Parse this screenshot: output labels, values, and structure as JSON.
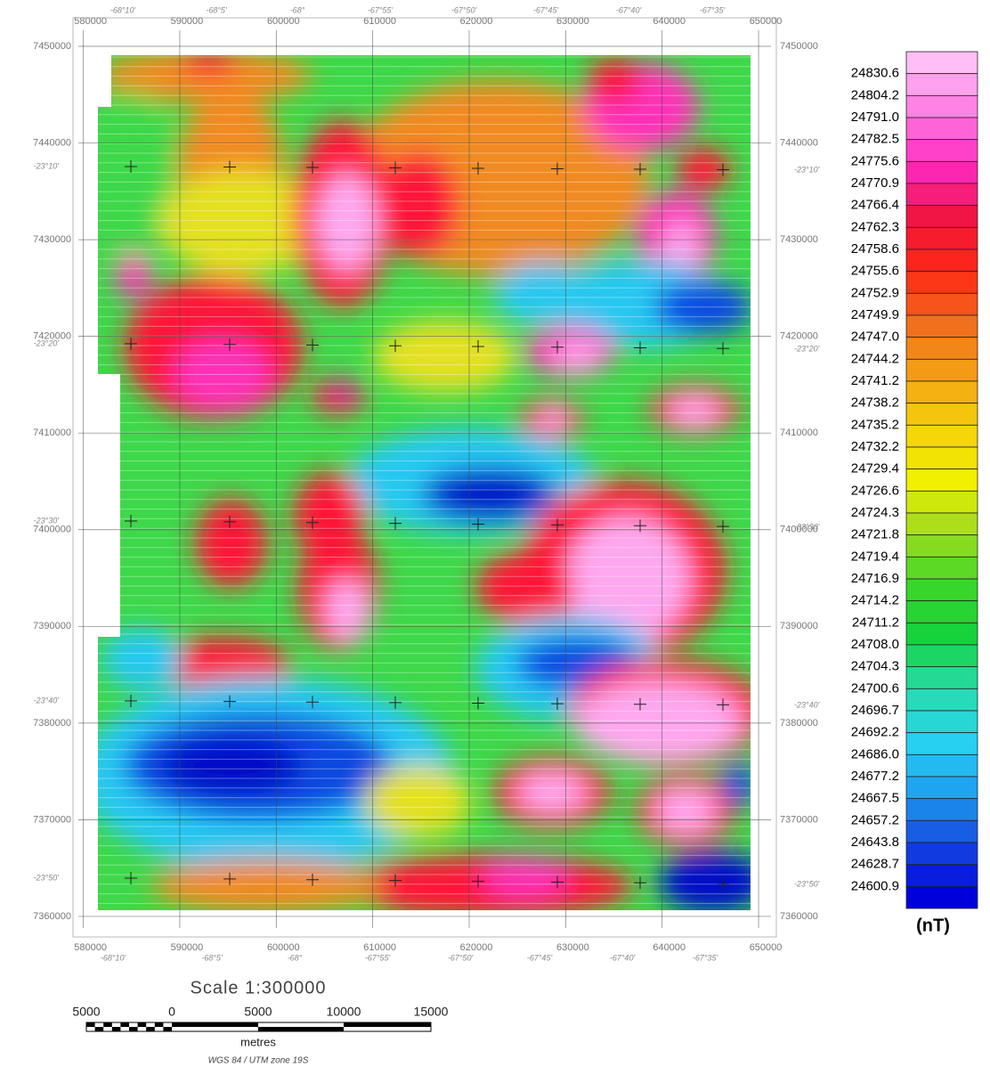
{
  "map": {
    "easting_labels": [
      "580000",
      "590000",
      "600000",
      "610000",
      "620000",
      "630000",
      "640000",
      "650000"
    ],
    "northing_labels": [
      "7450000",
      "7440000",
      "7430000",
      "7420000",
      "7410000",
      "7400000",
      "7390000",
      "7380000",
      "7370000",
      "7360000"
    ],
    "longitude_labels": [
      "-68°10'",
      "-68°5'",
      "-68°",
      "-67°55'",
      "-67°50'",
      "-67°45'",
      "-67°40'",
      "-67°35'"
    ],
    "latitude_labels": [
      "-23°10'",
      "-23°20'",
      "-23°30'",
      "-23°40'",
      "-23°50'"
    ]
  },
  "legend": {
    "levels": [
      "24830.6",
      "24804.2",
      "24791.0",
      "24782.5",
      "24775.6",
      "24770.9",
      "24766.4",
      "24762.3",
      "24758.6",
      "24755.6",
      "24752.9",
      "24749.9",
      "24747.0",
      "24744.2",
      "24741.2",
      "24738.2",
      "24735.2",
      "24732.2",
      "24729.4",
      "24726.6",
      "24724.3",
      "24721.8",
      "24719.4",
      "24716.9",
      "24714.2",
      "24711.2",
      "24708.0",
      "24704.3",
      "24700.6",
      "24696.7",
      "24692.2",
      "24686.0",
      "24677.2",
      "24667.5",
      "24657.2",
      "24643.8",
      "24628.7",
      "24600.9"
    ],
    "unit": "(nT)"
  },
  "scale": {
    "title": "Scale 1:300000",
    "labels": [
      "5000",
      "0",
      "5000",
      "10000",
      "15000"
    ],
    "unit": "metres",
    "projection": "WGS 84 / UTM zone 19S"
  }
}
